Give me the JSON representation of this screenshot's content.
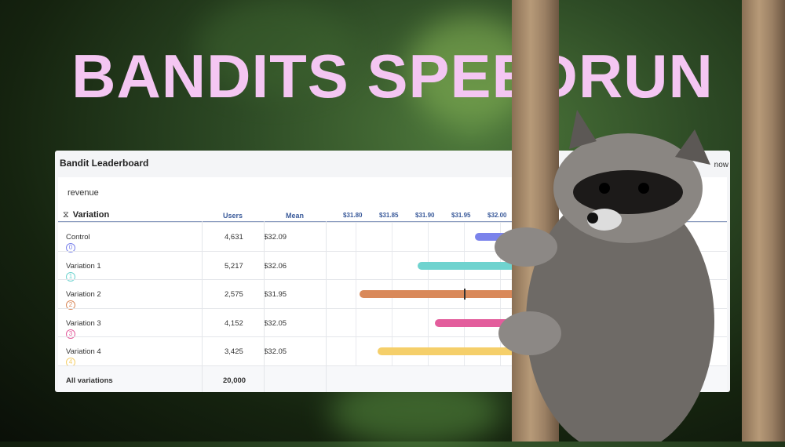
{
  "title": "BANDITS SPEEDRUN",
  "panel": {
    "title": "Bandit Leaderboard",
    "corner_text": "now",
    "metric": "revenue",
    "headers": {
      "variation": "Variation",
      "users": "Users",
      "mean": "Mean"
    },
    "rows": [
      {
        "index": "0",
        "name": "Control",
        "users": "4,631",
        "mean": "$32.09",
        "color": "#7b83eb"
      },
      {
        "index": "1",
        "name": "Variation 1",
        "users": "5,217",
        "mean": "$32.06",
        "color": "#6fd3cf"
      },
      {
        "index": "2",
        "name": "Variation 2",
        "users": "2,575",
        "mean": "$31.95",
        "color": "#d9895a"
      },
      {
        "index": "3",
        "name": "Variation 3",
        "users": "4,152",
        "mean": "$32.05",
        "color": "#e35d9c"
      },
      {
        "index": "4",
        "name": "Variation 4",
        "users": "3,425",
        "mean": "$32.05",
        "color": "#f5cf6a"
      }
    ],
    "total": {
      "label": "All variations",
      "users": "20,000"
    }
  },
  "chart_data": {
    "type": "bar",
    "orientation": "horizontal-interval",
    "ticks": [
      "$31.80",
      "$31.85",
      "$31.90",
      "$31.95",
      "$32.00"
    ],
    "xlim": [
      31.8,
      32.3
    ],
    "categories": [
      "Control",
      "Variation 1",
      "Variation 2",
      "Variation 3",
      "Variation 4"
    ],
    "lower": [
      31.965,
      31.886,
      31.805,
      31.91,
      31.83
    ],
    "mean": [
      32.09,
      32.06,
      31.95,
      32.05,
      32.05
    ]
  }
}
